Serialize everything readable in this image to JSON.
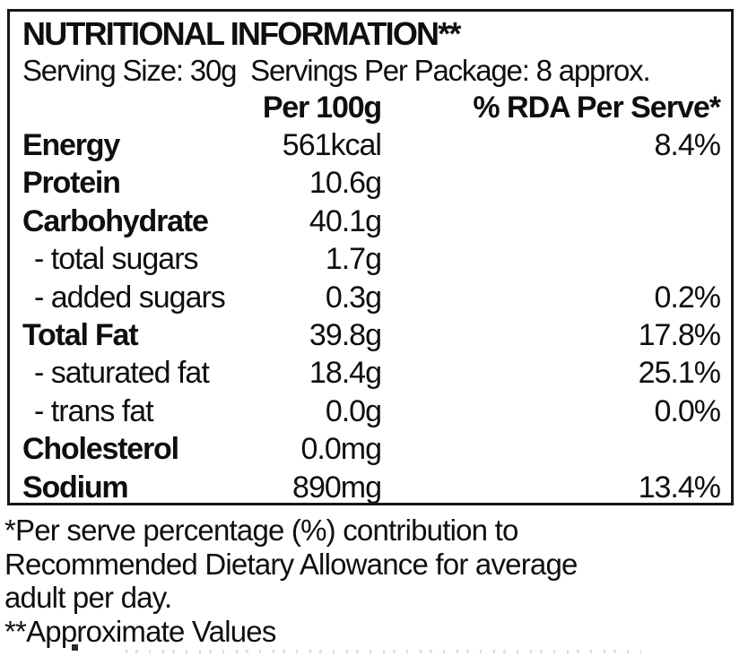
{
  "panel": {
    "title": "NUTRITIONAL INFORMATION**",
    "serving_info": "Serving Size: 30g  Servings Per Package: 8 approx."
  },
  "table": {
    "columns": {
      "nutrient_header": "",
      "amount_header": "Per 100g",
      "rda_header": "% RDA Per Serve*"
    },
    "rows": [
      {
        "label": "Energy",
        "amount": "561kcal",
        "rda": "8.4%",
        "emphasis": true,
        "indent": false
      },
      {
        "label": "Protein",
        "amount": "10.6g",
        "rda": "",
        "emphasis": true,
        "indent": false
      },
      {
        "label": "Carbohydrate",
        "amount": "40.1g",
        "rda": "",
        "emphasis": true,
        "indent": false
      },
      {
        "label": "- total sugars",
        "amount": "1.7g",
        "rda": "",
        "emphasis": false,
        "indent": true
      },
      {
        "label": "- added sugars",
        "amount": "0.3g",
        "rda": "0.2%",
        "emphasis": false,
        "indent": true
      },
      {
        "label": "Total Fat",
        "amount": "39.8g",
        "rda": "17.8%",
        "emphasis": true,
        "indent": false
      },
      {
        "label": "- saturated fat",
        "amount": "18.4g",
        "rda": "25.1%",
        "emphasis": false,
        "indent": true
      },
      {
        "label": "- trans fat",
        "amount": "0.0g",
        "rda": "0.0%",
        "emphasis": false,
        "indent": true
      },
      {
        "label": "Cholesterol",
        "amount": "0.0mg",
        "rda": "",
        "emphasis": true,
        "indent": false
      },
      {
        "label": "Sodium",
        "amount": "890mg",
        "rda": "13.4%",
        "emphasis": true,
        "indent": false
      }
    ]
  },
  "footnotes": {
    "rda_note_lines": [
      "*Per serve percentage (%) contribution to",
      "Recommended Dietary Allowance for average",
      "adult per day."
    ],
    "approx_note": "**Approximate Values"
  },
  "colors": {
    "text": "#0f0f0f",
    "border": "#161616",
    "background": "#ffffff"
  }
}
